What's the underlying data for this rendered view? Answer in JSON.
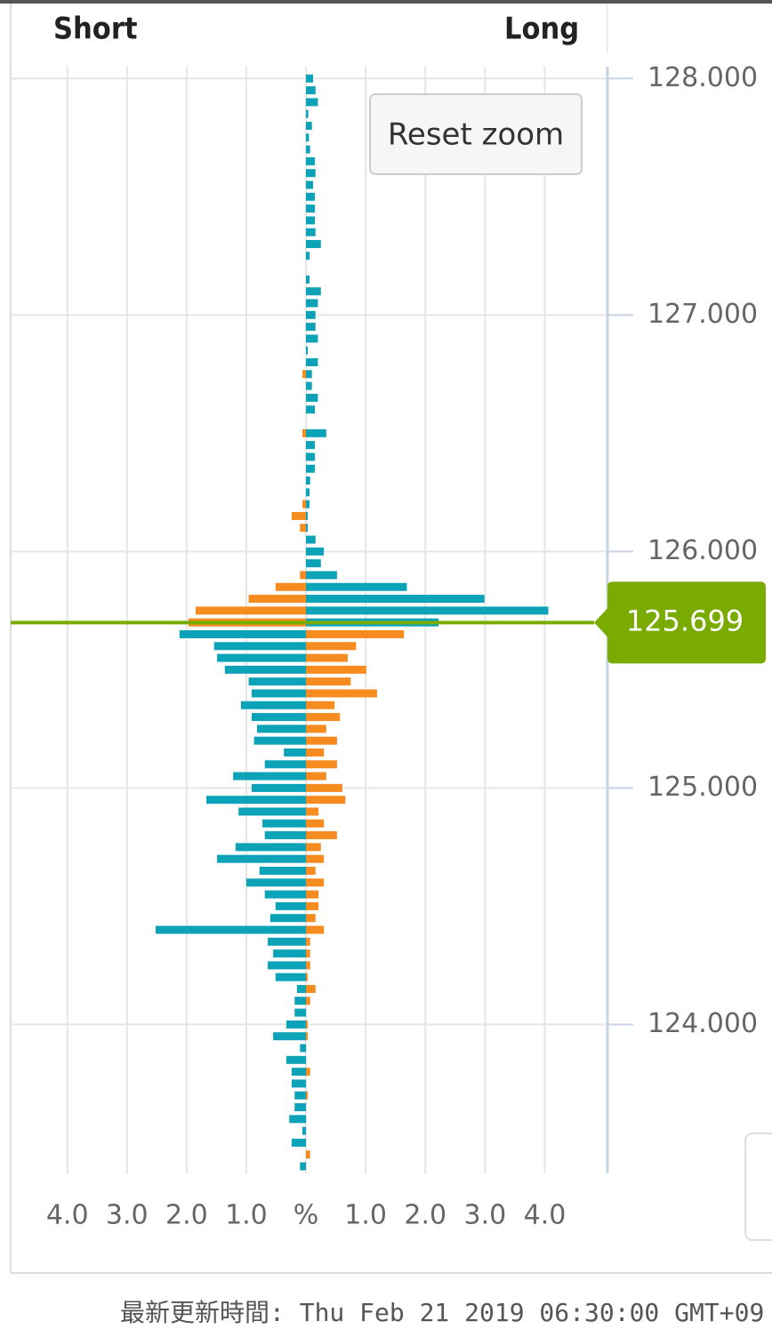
{
  "chart_data": {
    "type": "butterfly-bar",
    "current_price": {
      "value": 125.699,
      "label": "125.699"
    },
    "button": "Reset zoom",
    "footer": "最新更新時間: Thu Feb 21 2019 06:30:00 GMT+09",
    "ylim": [
      123.37,
      128.05
    ],
    "yticks": [
      {
        "value": 124,
        "label": "124.000"
      },
      {
        "value": 125,
        "label": "125.000"
      },
      {
        "value": 126,
        "label": "126.000"
      },
      {
        "value": 127,
        "label": "127.000"
      },
      {
        "value": 128,
        "label": "128.000"
      }
    ],
    "short_xlim": [
      0,
      4.95
    ],
    "long_xlim": [
      0,
      5.05
    ],
    "short_xticks": [
      {
        "value": 4,
        "label": "4.0"
      },
      {
        "value": 3,
        "label": "3.0"
      },
      {
        "value": 2,
        "label": "2.0"
      },
      {
        "value": 1,
        "label": "1.0"
      }
    ],
    "long_xticks": [
      {
        "value": 0,
        "label": "%"
      },
      {
        "value": 1,
        "label": "1.0"
      },
      {
        "value": 2,
        "label": "2.0"
      },
      {
        "value": 3,
        "label": "3.0"
      },
      {
        "value": 4,
        "label": "4.0"
      }
    ],
    "grid": true,
    "y": [
      128,
      127.95,
      127.9,
      127.85,
      127.8,
      127.75,
      127.7,
      127.65,
      127.6,
      127.55,
      127.5,
      127.45,
      127.4,
      127.35,
      127.3,
      127.25,
      127.2,
      127.15,
      127.1,
      127.05,
      127,
      126.95,
      126.9,
      126.85,
      126.8,
      126.75,
      126.7,
      126.65,
      126.6,
      126.55,
      126.5,
      126.45,
      126.4,
      126.35,
      126.3,
      126.25,
      126.2,
      126.15,
      126.1,
      126.05,
      126,
      125.95,
      125.9,
      125.85,
      125.8,
      125.75,
      125.7,
      125.65,
      125.6,
      125.55,
      125.5,
      125.45,
      125.4,
      125.35,
      125.3,
      125.25,
      125.2,
      125.15,
      125.1,
      125.05,
      125,
      124.95,
      124.9,
      124.85,
      124.8,
      124.75,
      124.7,
      124.65,
      124.6,
      124.55,
      124.5,
      124.45,
      124.4,
      124.35,
      124.3,
      124.25,
      124.2,
      124.15,
      124.1,
      124.05,
      124,
      123.95,
      123.9,
      123.85,
      123.8,
      123.75,
      123.7,
      123.65,
      123.6,
      123.55,
      123.5,
      123.45,
      123.4
    ],
    "series": [
      {
        "name": "Short",
        "side": "left",
        "colors": {
          "above": "#f68b1f",
          "below": "#0ca3b9"
        },
        "values": [
          0,
          0,
          0,
          0,
          0,
          0,
          0,
          0,
          0,
          0,
          0,
          0,
          0,
          0,
          0,
          0,
          0,
          0,
          0,
          0,
          0,
          0,
          0,
          0,
          0,
          0.06,
          0,
          0,
          0,
          0,
          0.06,
          0,
          0,
          0,
          0,
          0,
          0.06,
          0.24,
          0.1,
          0,
          0,
          0,
          0.1,
          0.51,
          0.96,
          1.85,
          1.97,
          2.12,
          1.54,
          1.49,
          1.36,
          0.96,
          0.91,
          1.09,
          0.91,
          0.82,
          0.87,
          0.37,
          0.69,
          1.22,
          0.91,
          1.67,
          1.13,
          0.73,
          0.69,
          1.18,
          1.49,
          0.78,
          1.0,
          0.69,
          0.51,
          0.6,
          2.52,
          0.64,
          0.55,
          0.64,
          0.51,
          0.15,
          0.19,
          0.19,
          0.33,
          0.55,
          0.1,
          0.33,
          0.24,
          0.24,
          0.19,
          0.19,
          0.28,
          0.06,
          0.24,
          0,
          0.1
        ]
      },
      {
        "name": "Long",
        "side": "right",
        "colors": {
          "above": "#0ca3b9",
          "below": "#f68b1f"
        },
        "values": [
          0.12,
          0.16,
          0.2,
          0.04,
          0.1,
          0.05,
          0.07,
          0.15,
          0.16,
          0.12,
          0.15,
          0.15,
          0.15,
          0.16,
          0.25,
          0.06,
          0,
          0.06,
          0.25,
          0.2,
          0.16,
          0.16,
          0.2,
          0.03,
          0.2,
          0.1,
          0.1,
          0.2,
          0.15,
          0,
          0.34,
          0.15,
          0.15,
          0.15,
          0.07,
          0.06,
          0.06,
          0.03,
          0.03,
          0.16,
          0.3,
          0.25,
          0.52,
          1.69,
          2.99,
          4.06,
          2.22,
          1.64,
          0.84,
          0.7,
          1.01,
          0.75,
          1.19,
          0.48,
          0.57,
          0.34,
          0.52,
          0.3,
          0.52,
          0.34,
          0.61,
          0.66,
          0.21,
          0.3,
          0.52,
          0.25,
          0.3,
          0.16,
          0.3,
          0.21,
          0.21,
          0.16,
          0.3,
          0.07,
          0.07,
          0.07,
          0.03,
          0.16,
          0.07,
          0,
          0.03,
          0.03,
          0,
          0,
          0.07,
          0,
          0.03,
          0,
          0,
          0,
          0,
          0.07,
          0
        ]
      }
    ]
  }
}
